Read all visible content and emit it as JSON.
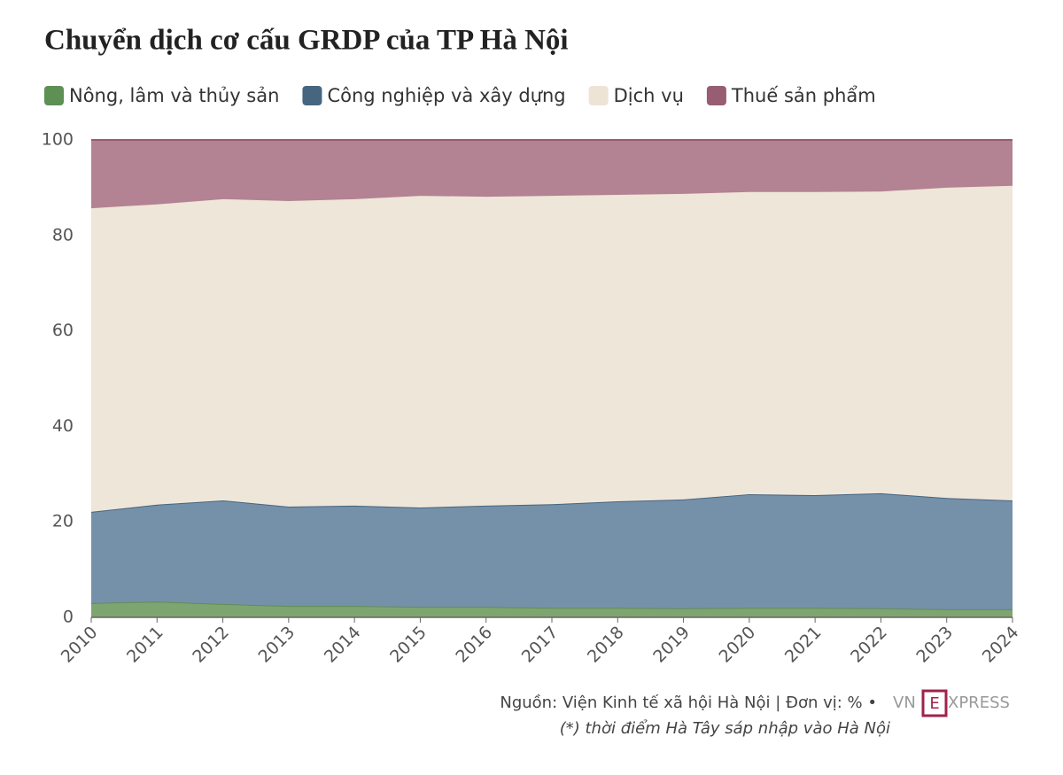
{
  "chart_data": {
    "type": "stacked-area",
    "title": "Chuyển dịch cơ cấu GRDP của TP Hà Nội",
    "categories": [
      "2010",
      "2011",
      "2012",
      "2013",
      "2014",
      "2015",
      "2016",
      "2017",
      "2018",
      "2019",
      "2020",
      "2021",
      "2022",
      "2023",
      "2024"
    ],
    "series": [
      {
        "name": "Nông, lâm và thủy sản",
        "color": "#5e8f55",
        "fill": "#7ea56f",
        "values": [
          3.0,
          3.3,
          2.8,
          2.4,
          2.4,
          2.2,
          2.2,
          2.0,
          2.0,
          1.9,
          2.0,
          2.0,
          1.9,
          1.7,
          1.7
        ]
      },
      {
        "name": "Công nghiệp và xây dựng",
        "color": "#46657f",
        "fill": "#7591a9",
        "values": [
          19.1,
          20.3,
          21.7,
          20.8,
          21.0,
          20.8,
          21.2,
          21.7,
          22.3,
          22.8,
          23.8,
          23.6,
          24.1,
          23.3,
          22.8
        ]
      },
      {
        "name": "Dịch vụ",
        "color": "#ede4d6",
        "fill": "#efe6da",
        "values": [
          63.6,
          62.9,
          63.1,
          64.0,
          64.2,
          65.3,
          64.7,
          64.6,
          64.2,
          64.0,
          63.3,
          63.5,
          63.2,
          65.0,
          65.9
        ]
      },
      {
        "name": "Thuế sản phẩm",
        "color": "#975d72",
        "fill": "#b38293",
        "values": [
          14.3,
          13.5,
          12.4,
          12.8,
          12.4,
          11.7,
          11.9,
          11.7,
          11.5,
          11.3,
          10.9,
          10.9,
          10.8,
          10.0,
          9.6
        ]
      }
    ],
    "ylim": [
      0,
      100
    ],
    "yticks": [
      0,
      20,
      40,
      60,
      80,
      100
    ],
    "source": "Nguồn: Viện Kinh tế xã hội Hà Nội | Đơn vị: % •",
    "logo": [
      "VN",
      "E",
      "XPRESS"
    ],
    "note": "(*) thời điểm Hà Tây sáp nhập vào Hà Nội"
  }
}
